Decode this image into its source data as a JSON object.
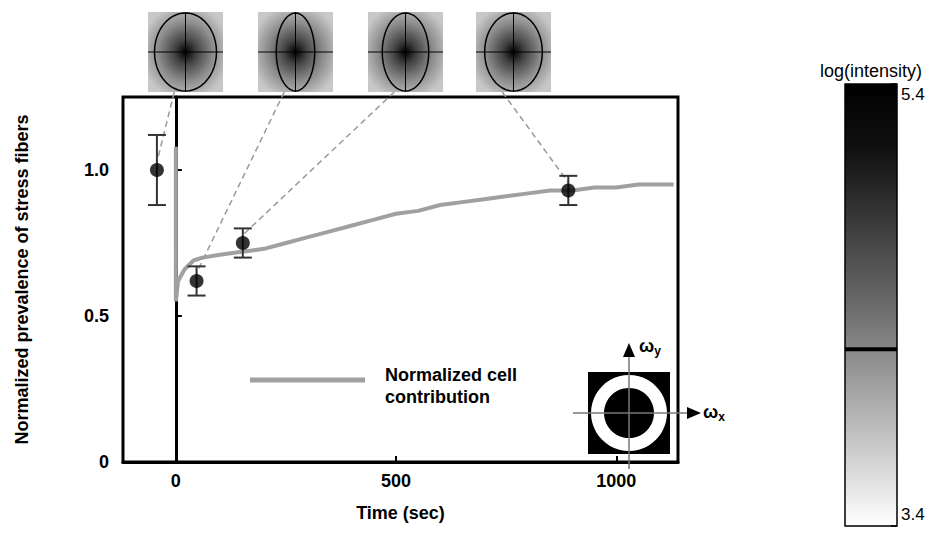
{
  "chart_data": {
    "type": "scatter",
    "x_label": "Time (sec)",
    "y_label": "Normalized prevalence of stress fibers",
    "xlim": [
      -120,
      1140
    ],
    "xticks": [
      0,
      500,
      1000
    ],
    "ylim": [
      0,
      1.25
    ],
    "yticks": [
      0,
      0.5,
      {
        "value": 1,
        "label": "1.0"
      }
    ],
    "grid": false,
    "series": [
      {
        "type": "scatter",
        "color": "#000000",
        "marker": "circle",
        "x": [
          -43,
          47,
          152,
          891
        ],
        "values": [
          1.0,
          0.62,
          0.75,
          0.93
        ],
        "errors": [
          0.12,
          0.05,
          0.05,
          0.05
        ]
      },
      {
        "type": "line",
        "name": "Normalized cell contribution",
        "color": "#a0a0a0",
        "line_style": "solid",
        "x": [
          0,
          0,
          5,
          20,
          40,
          60,
          100,
          150,
          200,
          250,
          300,
          350,
          400,
          450,
          500,
          550,
          600,
          650,
          700,
          750,
          800,
          850,
          900,
          950,
          1000,
          1050,
          1100,
          1130
        ],
        "values": [
          1.08,
          0.55,
          0.62,
          0.66,
          0.69,
          0.7,
          0.71,
          0.72,
          0.73,
          0.75,
          0.77,
          0.79,
          0.81,
          0.83,
          0.85,
          0.86,
          0.88,
          0.89,
          0.9,
          0.91,
          0.92,
          0.93,
          0.93,
          0.94,
          0.94,
          0.95,
          0.95,
          0.95
        ]
      }
    ],
    "colorbar": {
      "label": "log(intensity)",
      "range": [
        3.4,
        5.4
      ],
      "ticks": [
        3.4,
        5.4
      ],
      "contour_level": 4.2
    },
    "filter_axes": {
      "x": "ωx",
      "y": "ωy"
    }
  }
}
